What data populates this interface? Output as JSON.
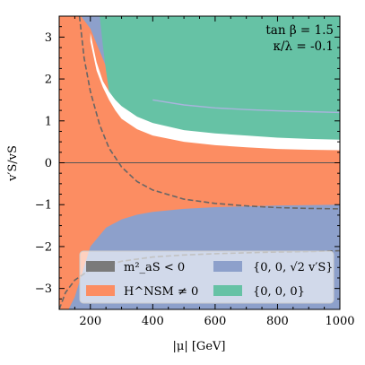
{
  "chart_data": {
    "type": "area",
    "xlabel": "|μ| [GeV]",
    "ylabel": "v′S/vS",
    "xlim": [
      100,
      1000
    ],
    "ylim": [
      -3.5,
      3.5
    ],
    "xticks": [
      200,
      400,
      600,
      800,
      1000
    ],
    "yticks": [
      -3,
      -2,
      -1,
      0,
      1,
      2,
      3
    ],
    "xtick_labels": [
      "200",
      "400",
      "600",
      "800",
      "1000"
    ],
    "ytick_labels": [
      "−3",
      "−2",
      "−1",
      "0",
      "1",
      "2",
      "3"
    ],
    "annotations": [
      "tan β = 1.5",
      "κ/λ = -0.1"
    ],
    "colors": {
      "tachyonic": "#7a7a7a",
      "nsm": "#fc8d62",
      "sqrt2": "#8da0cb",
      "trivial": "#66c2a5",
      "dashed": "#666666",
      "zeroline": "#555555"
    },
    "legend": {
      "placement": "lower center",
      "entries": [
        {
          "key": "tachyonic",
          "label": "m²_aS < 0"
        },
        {
          "key": "sqrt2",
          "label": "{0, 0, √2 v′S}"
        },
        {
          "key": "nsm",
          "label": "H^NSM ≠ 0"
        },
        {
          "key": "trivial",
          "label": "{0, 0, 0}"
        }
      ]
    },
    "series": [
      {
        "key": "nsm",
        "x": [
          100,
          1000
        ],
        "y_lower": [
          -3.5,
          -3.5
        ],
        "y_upper": [
          3.5,
          3.5
        ]
      },
      {
        "key": "sqrt2",
        "x": [
          100,
          120,
          140,
          170,
          200,
          250,
          300,
          400,
          500,
          600,
          700,
          800,
          900,
          1000
        ],
        "y_upper": [
          3.5,
          3.5,
          3.5,
          3.5,
          3.5,
          3.5,
          3.5,
          3.5,
          3.5,
          3.5,
          3.5,
          3.5,
          3.5,
          3.5
        ],
        "y_lower": [
          3.5,
          3.5,
          3.5,
          3.5,
          3.2,
          2.3,
          1.85,
          1.5,
          1.38,
          1.31,
          1.27,
          1.24,
          1.22,
          1.2
        ]
      },
      {
        "key": "sqrt2",
        "x": [
          100,
          130,
          150,
          200,
          250,
          300,
          350,
          400,
          500,
          600,
          700,
          800,
          900,
          1000
        ],
        "y_upper": [
          -3.5,
          -3.5,
          -3.2,
          -2.0,
          -1.55,
          -1.35,
          -1.24,
          -1.17,
          -1.1,
          -1.06,
          -1.04,
          -1.02,
          -1.01,
          -1.0
        ],
        "y_lower": [
          -3.5,
          -3.5,
          -3.5,
          -3.5,
          -3.5,
          -3.5,
          -3.5,
          -3.5,
          -3.5,
          -3.5,
          -3.5,
          -3.5,
          -3.5,
          -3.5
        ]
      },
      {
        "key": "trivial",
        "x": [
          230,
          240,
          250,
          260,
          280,
          300,
          350,
          400,
          500,
          600,
          700,
          800,
          900,
          1000
        ],
        "y_upper": [
          3.5,
          3.5,
          3.5,
          3.5,
          3.5,
          3.5,
          3.5,
          3.5,
          3.5,
          3.5,
          3.5,
          3.5,
          3.5,
          3.5
        ],
        "y_lower": [
          3.5,
          2.8,
          2.2,
          1.7,
          1.3,
          1.1,
          0.87,
          0.75,
          0.64,
          0.58,
          0.55,
          0.52,
          0.5,
          0.5
        ]
      },
      {
        "key": "white_gap",
        "x": [
          200,
          220,
          240,
          260,
          280,
          300,
          350,
          400,
          500,
          600,
          700,
          800,
          900,
          1000
        ],
        "y_upper": [
          3.1,
          2.4,
          1.95,
          1.7,
          1.5,
          1.35,
          1.1,
          0.95,
          0.78,
          0.7,
          0.65,
          0.6,
          0.57,
          0.55
        ],
        "y_lower": [
          2.9,
          2.2,
          1.8,
          1.5,
          1.25,
          1.05,
          0.8,
          0.65,
          0.5,
          0.42,
          0.37,
          0.33,
          0.31,
          0.3
        ]
      },
      {
        "key": "dashed",
        "x": [
          165,
          180,
          200,
          230,
          260,
          300,
          350,
          400,
          500,
          600,
          700,
          800,
          900,
          1000
        ],
        "y": [
          3.5,
          2.5,
          1.7,
          0.9,
          0.35,
          -0.1,
          -0.45,
          -0.65,
          -0.87,
          -0.97,
          -1.03,
          -1.07,
          -1.09,
          -1.1
        ]
      },
      {
        "key": "dashed",
        "x": [
          100,
          120,
          150,
          200,
          300,
          400,
          500,
          600,
          700,
          800,
          900,
          1000
        ],
        "y": [
          -3.5,
          -3.1,
          -2.8,
          -2.55,
          -2.35,
          -2.25,
          -2.2,
          -2.17,
          -2.15,
          -2.13,
          -2.12,
          -2.1
        ]
      },
      {
        "key": "sqrt2_line",
        "x": [
          400,
          500,
          600,
          700,
          800,
          900,
          1000
        ],
        "y": [
          1.5,
          1.38,
          1.31,
          1.27,
          1.24,
          1.22,
          1.2
        ]
      }
    ]
  }
}
